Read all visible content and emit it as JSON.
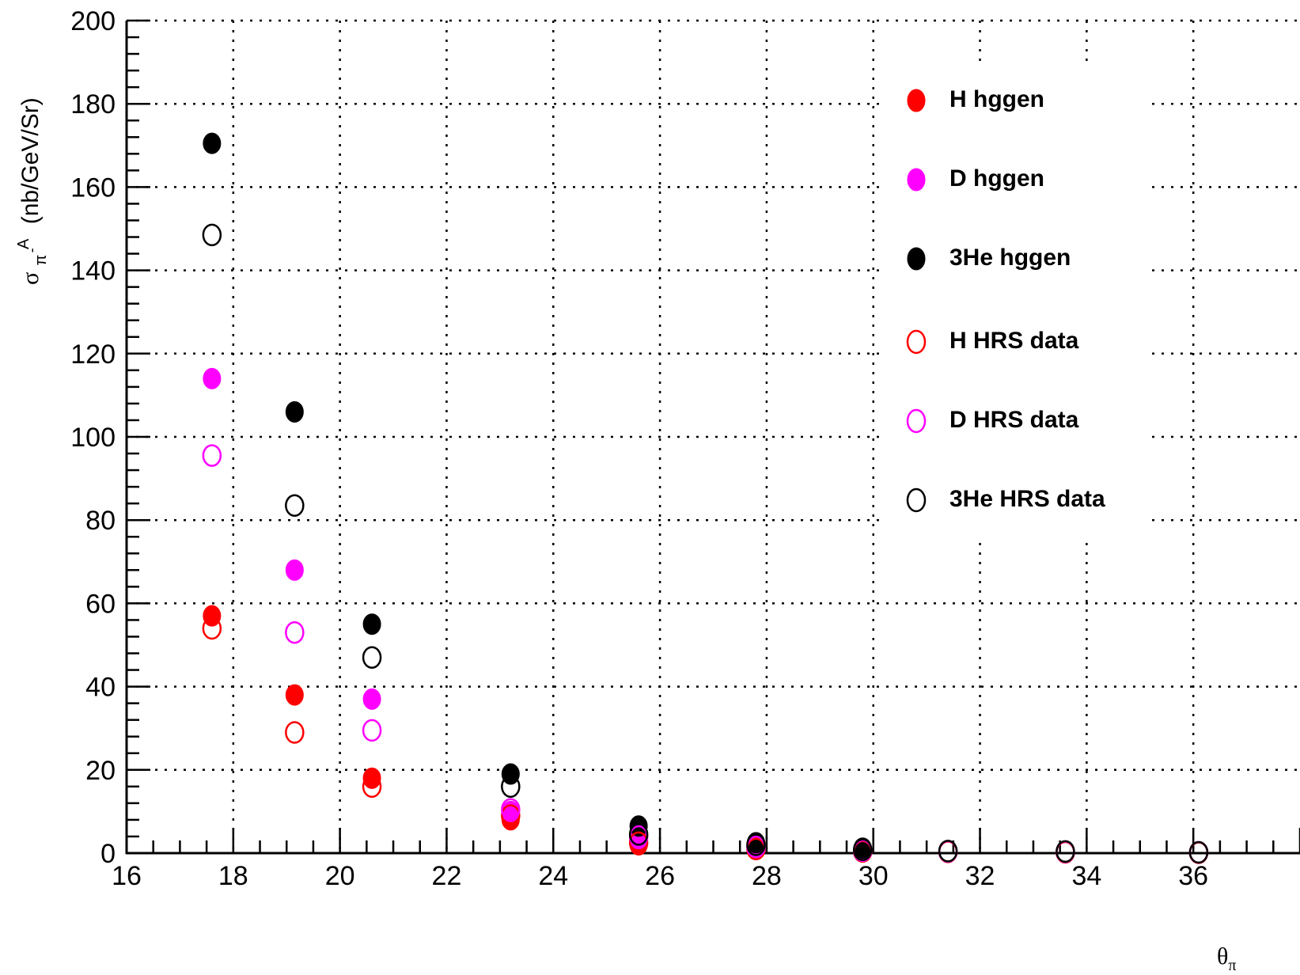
{
  "chart_data": {
    "type": "scatter",
    "title": "",
    "xlabel": "θπ",
    "ylabel_parts": {
      "sigma": "σ",
      "sub": "π",
      "minus": "-",
      "sup": "A",
      "units": "(nb/GeV/Sr)"
    },
    "xlim": [
      16,
      38
    ],
    "ylim": [
      0,
      200
    ],
    "x_ticks": [
      16,
      18,
      20,
      22,
      24,
      26,
      28,
      30,
      32,
      34,
      36
    ],
    "y_ticks": [
      0,
      20,
      40,
      60,
      80,
      100,
      120,
      140,
      160,
      180,
      200
    ],
    "grid": true,
    "legend_position": "upper-right",
    "series": [
      {
        "name": "H hggen",
        "marker": "filled",
        "color": "#ff0000",
        "x": [
          17.6,
          19.15,
          20.6,
          23.2,
          25.6,
          27.8,
          29.8
        ],
        "y": [
          57,
          38,
          18,
          8,
          2,
          1,
          0.4
        ]
      },
      {
        "name": "D hggen",
        "marker": "filled",
        "color": "#ff00ff",
        "x": [
          17.6,
          19.15,
          20.6,
          23.2,
          25.6,
          27.8,
          29.8
        ],
        "y": [
          114,
          68,
          37,
          10,
          3.5,
          1.5,
          0.5
        ]
      },
      {
        "name": "3He hggen",
        "marker": "filled",
        "color": "#000000",
        "x": [
          17.6,
          19.15,
          20.6,
          23.2,
          25.6,
          27.8,
          29.8
        ],
        "y": [
          170.5,
          106,
          55,
          19,
          6.5,
          2.5,
          1.2
        ]
      },
      {
        "name": "H HRS data",
        "marker": "open",
        "color": "#ff0000",
        "x": [
          17.6,
          19.15,
          20.6,
          23.2,
          25.6,
          27.8,
          29.8,
          31.4,
          33.6,
          36.1
        ],
        "y": [
          54,
          29,
          16,
          9,
          2.5,
          1,
          0.4,
          0.3,
          0.2,
          0.1
        ]
      },
      {
        "name": "D HRS data",
        "marker": "open",
        "color": "#ff00ff",
        "x": [
          17.6,
          19.15,
          20.6,
          23.2,
          25.6,
          27.8,
          29.8,
          31.4,
          33.6,
          36.1
        ],
        "y": [
          95.5,
          53,
          29.5,
          10.5,
          4,
          1.5,
          0.6,
          0.4,
          0.3,
          0.2
        ]
      },
      {
        "name": "3He HRS data",
        "marker": "open",
        "color": "#000000",
        "x": [
          17.6,
          19.15,
          20.6,
          23.2,
          25.6,
          27.8,
          29.8,
          31.4,
          33.6,
          36.1
        ],
        "y": [
          148.5,
          83.5,
          47,
          16,
          4.5,
          2,
          0.8,
          0.5,
          0.4,
          0.2
        ]
      }
    ]
  }
}
